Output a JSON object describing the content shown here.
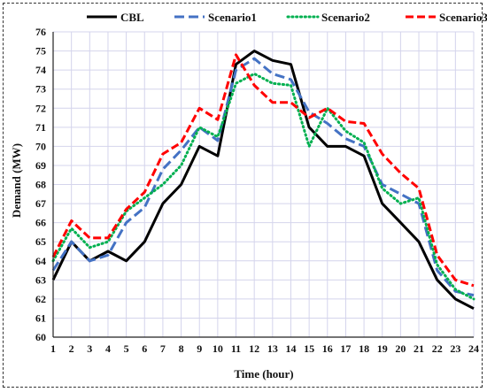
{
  "chart_data": {
    "type": "line",
    "xlabel": "Time (hour)",
    "ylabel": "Demand (MW)",
    "xlim": [
      1,
      24
    ],
    "ylim": [
      60,
      76
    ],
    "x": [
      1,
      2,
      3,
      4,
      5,
      6,
      7,
      8,
      9,
      10,
      11,
      12,
      13,
      14,
      15,
      16,
      17,
      18,
      19,
      20,
      21,
      22,
      23,
      24
    ],
    "x_ticks": [
      "1",
      "2",
      "3",
      "4",
      "5",
      "6",
      "7",
      "8",
      "9",
      "10",
      "11",
      "12",
      "13",
      "14",
      "15",
      "16",
      "17",
      "18",
      "19",
      "20",
      "21",
      "22",
      "23",
      "24"
    ],
    "y_ticks": [
      "60",
      "61",
      "62",
      "63",
      "64",
      "65",
      "66",
      "67",
      "68",
      "69",
      "70",
      "71",
      "72",
      "73",
      "74",
      "75",
      "76"
    ],
    "grid": true,
    "legend_position": "top",
    "series": [
      {
        "name": "CBL",
        "color": "#000000",
        "style": "solid",
        "values": [
          63.0,
          65.0,
          64.0,
          64.5,
          64.0,
          65.0,
          67.0,
          68.0,
          70.0,
          69.5,
          74.3,
          75.0,
          74.5,
          74.3,
          71.0,
          70.0,
          70.0,
          69.5,
          67.0,
          66.0,
          65.0,
          63.0,
          62.0,
          61.5
        ]
      },
      {
        "name": "Scenario1",
        "color": "#4472C4",
        "style": "dashed",
        "values": [
          63.5,
          65.0,
          64.0,
          64.3,
          66.0,
          66.8,
          68.8,
          69.8,
          71.0,
          70.3,
          74.0,
          74.6,
          73.8,
          73.5,
          71.8,
          71.2,
          70.4,
          70.0,
          68.0,
          67.5,
          67.0,
          63.5,
          62.4,
          62.2
        ]
      },
      {
        "name": "Scenario2",
        "color": "#00B050",
        "style": "dotted",
        "values": [
          64.0,
          65.7,
          64.7,
          65.0,
          66.6,
          67.3,
          68.0,
          69.0,
          71.0,
          70.5,
          73.3,
          73.8,
          73.3,
          73.2,
          70.0,
          72.0,
          70.8,
          70.2,
          67.8,
          67.0,
          67.3,
          63.8,
          62.5,
          62.0
        ]
      },
      {
        "name": "Scenario3",
        "color": "#FF0000",
        "style": "dashed",
        "values": [
          64.2,
          66.1,
          65.2,
          65.2,
          66.7,
          67.6,
          69.6,
          70.2,
          72.0,
          71.4,
          74.8,
          73.2,
          72.3,
          72.3,
          71.5,
          72.0,
          71.3,
          71.2,
          69.6,
          68.6,
          67.8,
          64.3,
          63.0,
          62.7
        ]
      }
    ]
  }
}
